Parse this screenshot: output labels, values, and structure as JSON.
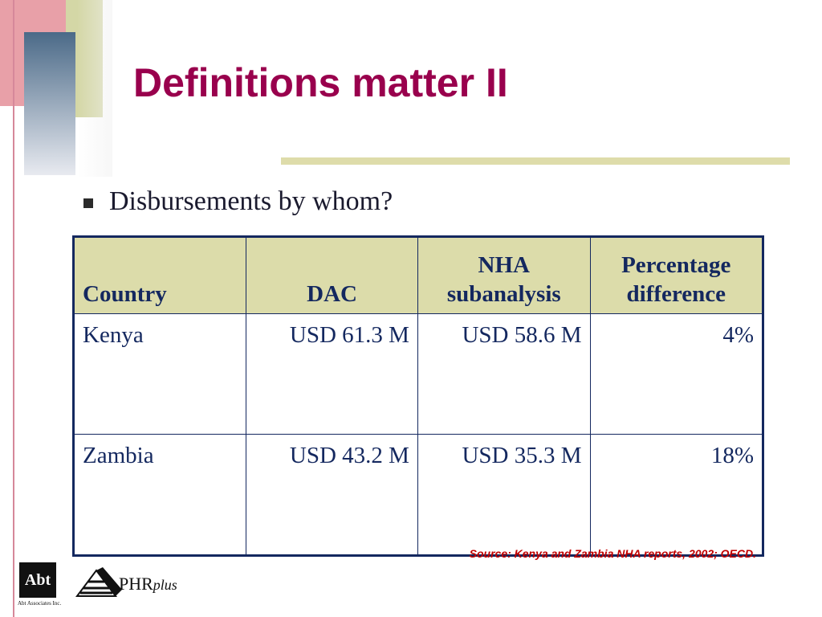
{
  "slide": {
    "title": "Definitions matter II",
    "bullet": "Disbursements by whom?",
    "source": "Source: Kenya and Zambia NHA reports, 2002; OECD."
  },
  "table": {
    "headers": [
      "Country",
      "DAC",
      "NHA subanalysis",
      "Percentage difference"
    ],
    "rows": [
      [
        "Kenya",
        "USD 61.3 M",
        "USD 58.6 M",
        "4%"
      ],
      [
        "Zambia",
        "USD 43.2 M",
        "USD 35.3 M",
        "18%"
      ]
    ]
  },
  "logos": {
    "abt": "Abt",
    "abt_sub": "Abt Associates Inc.",
    "phr_main": "PHR",
    "phr_plus": "plus"
  },
  "colors": {
    "title": "#99004d",
    "table_border": "#14285f",
    "header_fill": "#dcdcaa",
    "source": "#c00000"
  }
}
